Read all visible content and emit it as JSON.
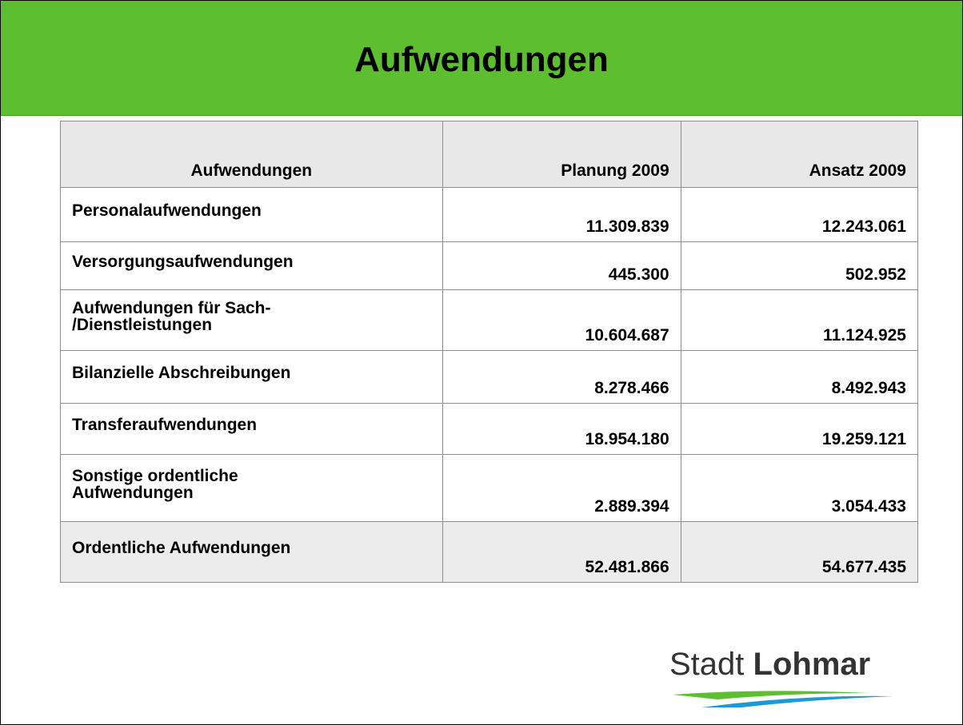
{
  "header": {
    "title": "Aufwendungen"
  },
  "table": {
    "columns": [
      "Aufwendungen",
      "Planung 2009",
      "Ansatz 2009"
    ],
    "rows": [
      [
        "Personalaufwendungen",
        "11.309.839",
        "12.243.061"
      ],
      [
        "Versorgungsaufwendungen",
        "445.300",
        "502.952"
      ],
      [
        "Aufwendungen für Sach-\n/Dienstleistungen",
        "10.604.687",
        "11.124.925"
      ],
      [
        "Bilanzielle Abschreibungen",
        "8.278.466",
        "8.492.943"
      ],
      [
        "Transferaufwendungen",
        "18.954.180",
        "19.259.121"
      ],
      [
        "Sonstige ordentliche\nAufwendungen",
        "2.889.394",
        "3.054.433"
      ],
      [
        "Ordentliche Aufwendungen",
        "52.481.866",
        "54.677.435"
      ]
    ]
  },
  "logo": {
    "word1": "Stadt",
    "word2": "Lohmar"
  }
}
